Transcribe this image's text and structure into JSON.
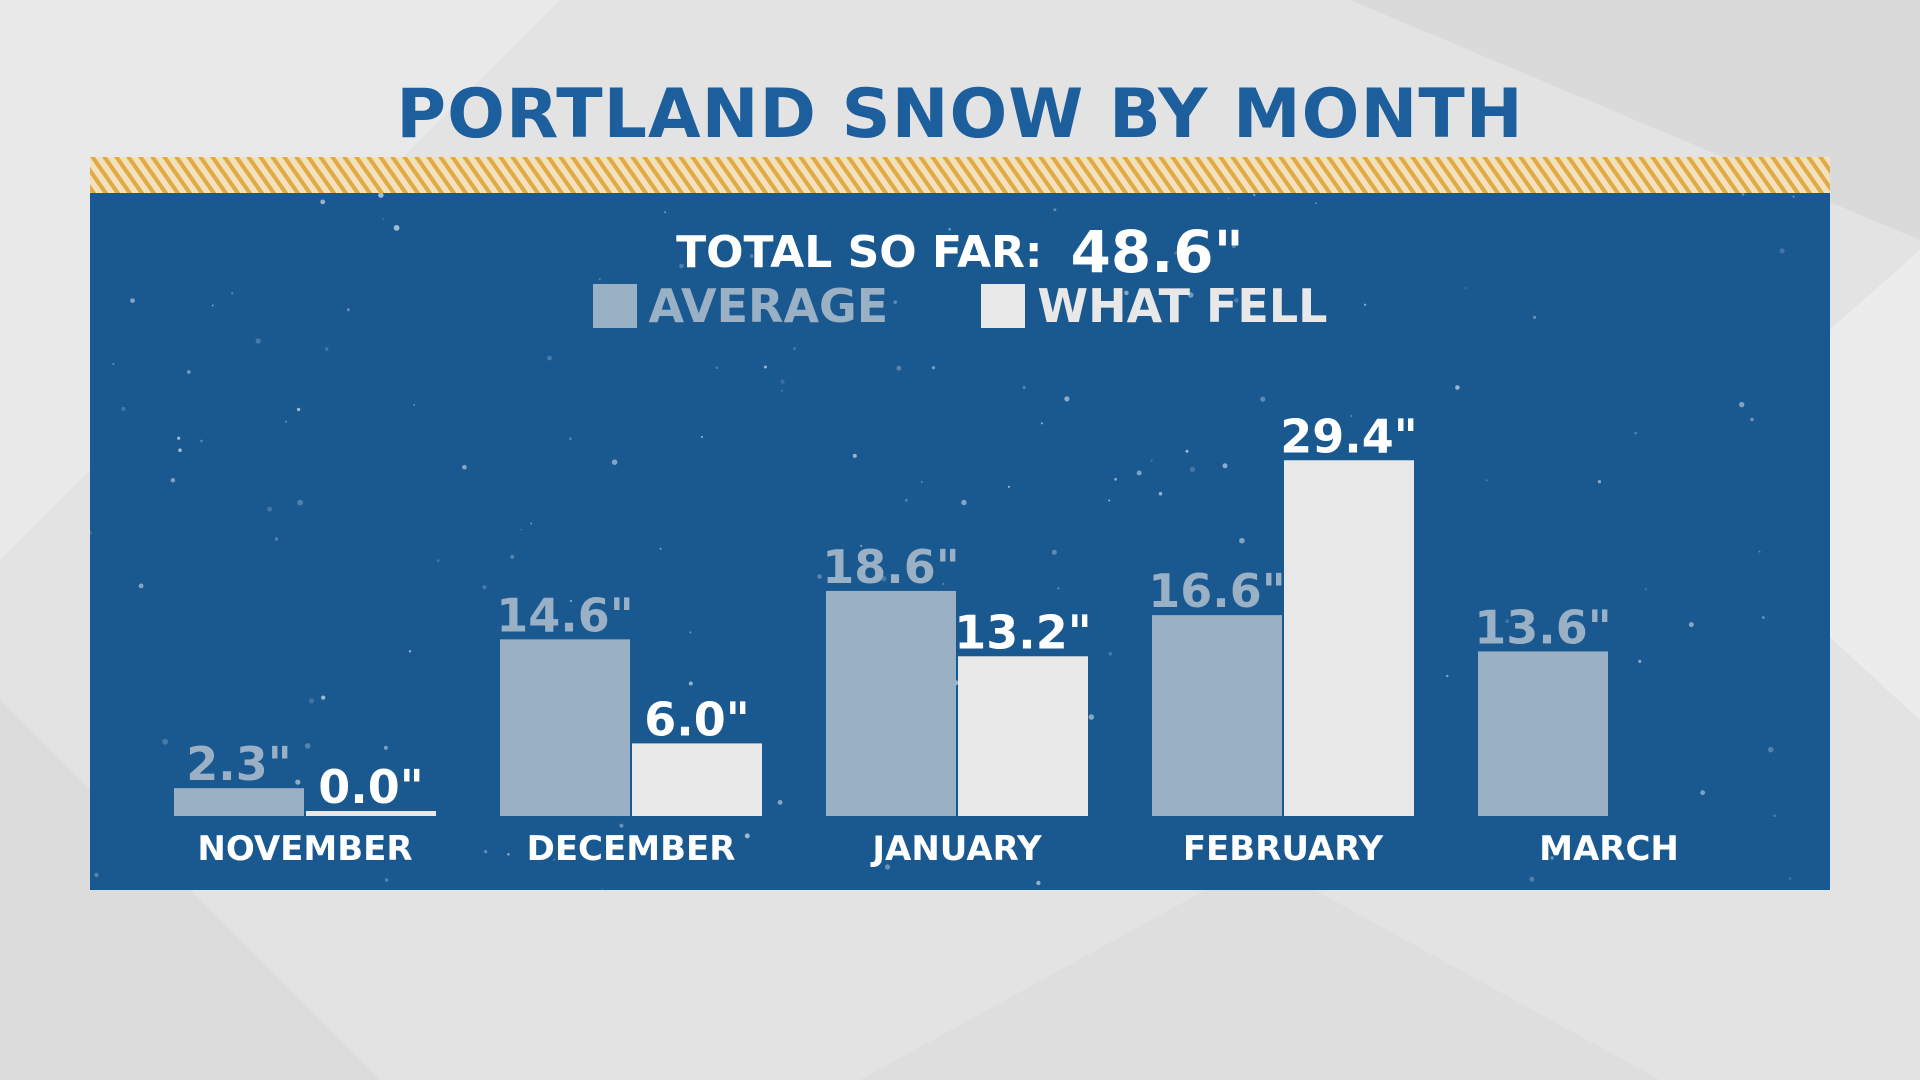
{
  "title": "PORTLAND SNOW BY MONTH",
  "total": {
    "label": "TOTAL SO FAR:",
    "value": "48.6\""
  },
  "legend": [
    {
      "label": "AVERAGE",
      "color": "#9ab0c5"
    },
    {
      "label": "WHAT FELL",
      "color": "#e8e8e8"
    }
  ],
  "colors": {
    "title": "#1d5e9c",
    "panel": "#1a5890",
    "stripe_gold": "#e2aa43",
    "stripe_light": "#f1e1bf",
    "average": "#9ab0c5",
    "fell": "#e8e8e8",
    "fell_label": "#ffffff",
    "month_label": "#ffffff"
  },
  "chart_data": {
    "type": "bar",
    "title": "PORTLAND SNOW BY MONTH",
    "unit": "inches",
    "categories": [
      "NOVEMBER",
      "DECEMBER",
      "JANUARY",
      "FEBRUARY",
      "MARCH"
    ],
    "series": [
      {
        "name": "AVERAGE",
        "values": [
          2.3,
          14.6,
          18.6,
          16.6,
          13.6
        ],
        "labels": [
          "2.3\"",
          "14.6\"",
          "18.6\"",
          "16.6\"",
          "13.6\""
        ]
      },
      {
        "name": "WHAT FELL",
        "values": [
          0.0,
          6.0,
          13.2,
          29.4,
          null
        ],
        "labels": [
          "0.0\"",
          "6.0\"",
          "13.2\"",
          "29.4\"",
          null
        ]
      }
    ],
    "grid": false,
    "legend_position": "top-center"
  }
}
